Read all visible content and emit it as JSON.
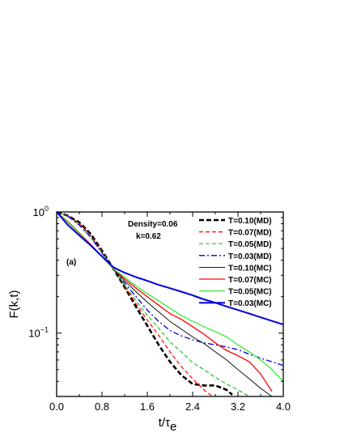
{
  "chart_data": {
    "type": "line",
    "xlabel": "t/τ",
    "xlabel_sub": "e",
    "ylabel": "F(k,t)",
    "xlim": [
      0.0,
      4.0
    ],
    "ylim": [
      0.03,
      1.0
    ],
    "yscale": "log",
    "xticks": [
      "0.0",
      "0.8",
      "1.6",
      "2.4",
      "3.2",
      "4.0"
    ],
    "xtick_values": [
      0.0,
      0.8,
      1.6,
      2.4,
      3.2,
      4.0
    ],
    "ytick_base": "10",
    "yticks": [
      {
        "value": 1.0,
        "exp": "0"
      },
      {
        "value": 0.1,
        "exp": "−1"
      }
    ],
    "panel_label": "(a)",
    "annotations": [
      "Density=0.06",
      "k=0.62"
    ],
    "legend_position": "top-right",
    "series": [
      {
        "name": "T=0.10(MD)",
        "color": "#000000",
        "style": "dashed-heavy",
        "x": [
          0,
          0.2,
          0.4,
          0.6,
          0.8,
          1.0,
          1.2,
          1.4,
          1.6,
          1.8,
          2.0,
          2.2,
          2.4,
          2.6,
          2.8,
          3.0,
          3.1
        ],
        "y": [
          1.0,
          0.93,
          0.82,
          0.66,
          0.48,
          0.34,
          0.24,
          0.165,
          0.115,
          0.08,
          0.058,
          0.045,
          0.038,
          0.037,
          0.037,
          0.034,
          0.031
        ]
      },
      {
        "name": "T=0.07(MD)",
        "color": "#ff0000",
        "style": "dashed",
        "x": [
          0,
          0.2,
          0.4,
          0.6,
          0.8,
          1.0,
          1.2,
          1.4,
          1.6,
          1.8,
          2.0,
          2.2,
          2.4,
          2.6,
          2.75
        ],
        "y": [
          1.0,
          0.93,
          0.8,
          0.64,
          0.47,
          0.34,
          0.245,
          0.175,
          0.128,
          0.096,
          0.07,
          0.053,
          0.042,
          0.034,
          0.03
        ]
      },
      {
        "name": "T=0.05(MD)",
        "color": "#22c422",
        "style": "dashed",
        "x": [
          0,
          0.2,
          0.4,
          0.6,
          0.8,
          1.0,
          1.2,
          1.4,
          1.6,
          1.8,
          2.0,
          2.2,
          2.4,
          2.6,
          2.8,
          3.0,
          3.2,
          3.4
        ],
        "y": [
          1.0,
          0.92,
          0.78,
          0.62,
          0.46,
          0.34,
          0.25,
          0.185,
          0.14,
          0.11,
          0.085,
          0.07,
          0.057,
          0.05,
          0.043,
          0.038,
          0.034,
          0.03
        ]
      },
      {
        "name": "T=0.03(MD)",
        "color": "#0000cc",
        "style": "dash-dot",
        "x": [
          0,
          0.2,
          0.4,
          0.6,
          0.8,
          1.0,
          1.2,
          1.4,
          1.6,
          1.8,
          2.0,
          2.2,
          2.4,
          2.6,
          2.8,
          3.0,
          3.2,
          3.4,
          3.6,
          3.8,
          4.0
        ],
        "y": [
          1.0,
          0.92,
          0.78,
          0.62,
          0.46,
          0.34,
          0.26,
          0.2,
          0.155,
          0.125,
          0.105,
          0.095,
          0.088,
          0.083,
          0.08,
          0.077,
          0.073,
          0.067,
          0.062,
          0.058,
          0.054
        ]
      },
      {
        "name": "T=0.10(MC)",
        "color": "#000000",
        "style": "solid-thin",
        "x": [
          0,
          0.2,
          0.4,
          0.6,
          0.8,
          1.0,
          1.2,
          1.4,
          1.6,
          1.8,
          2.0,
          2.2,
          2.4,
          2.6,
          2.8,
          3.0,
          3.2,
          3.4,
          3.6,
          3.8
        ],
        "y": [
          1.0,
          0.83,
          0.66,
          0.54,
          0.43,
          0.34,
          0.27,
          0.22,
          0.18,
          0.15,
          0.125,
          0.108,
          0.093,
          0.082,
          0.07,
          0.06,
          0.05,
          0.042,
          0.035,
          0.03
        ]
      },
      {
        "name": "T=0.07(MC)",
        "color": "#ff0000",
        "style": "solid",
        "x": [
          0,
          0.2,
          0.4,
          0.6,
          0.8,
          1.0,
          1.2,
          1.4,
          1.6,
          1.8,
          2.0,
          2.2,
          2.4,
          2.6,
          2.8,
          3.0,
          3.2,
          3.4,
          3.6,
          3.8
        ],
        "y": [
          1.0,
          0.83,
          0.67,
          0.54,
          0.43,
          0.34,
          0.28,
          0.235,
          0.2,
          0.17,
          0.145,
          0.13,
          0.113,
          0.098,
          0.083,
          0.072,
          0.065,
          0.058,
          0.046,
          0.033
        ]
      },
      {
        "name": "T=0.05(MC)",
        "color": "#33ee33",
        "style": "solid",
        "x": [
          0,
          0.2,
          0.4,
          0.6,
          0.8,
          1.0,
          1.2,
          1.4,
          1.6,
          1.8,
          2.0,
          2.2,
          2.4,
          2.6,
          2.8,
          3.0,
          3.2,
          3.4,
          3.6,
          3.8,
          4.0
        ],
        "y": [
          1.0,
          0.82,
          0.66,
          0.53,
          0.43,
          0.34,
          0.29,
          0.245,
          0.212,
          0.185,
          0.16,
          0.14,
          0.125,
          0.113,
          0.103,
          0.093,
          0.08,
          0.07,
          0.06,
          0.05,
          0.04
        ]
      },
      {
        "name": "T=0.03(MC)",
        "color": "#0000dd",
        "style": "solid-heavy",
        "x": [
          0,
          0.2,
          0.4,
          0.6,
          0.8,
          1.0,
          1.2,
          1.4,
          1.6,
          1.8,
          2.0,
          2.2,
          2.4,
          2.6,
          2.8,
          3.0,
          3.2,
          3.4,
          3.6,
          3.8,
          4.0
        ],
        "y": [
          1.0,
          0.78,
          0.64,
          0.53,
          0.43,
          0.35,
          0.315,
          0.29,
          0.27,
          0.25,
          0.235,
          0.22,
          0.205,
          0.19,
          0.178,
          0.166,
          0.155,
          0.145,
          0.135,
          0.126,
          0.118
        ]
      }
    ]
  }
}
